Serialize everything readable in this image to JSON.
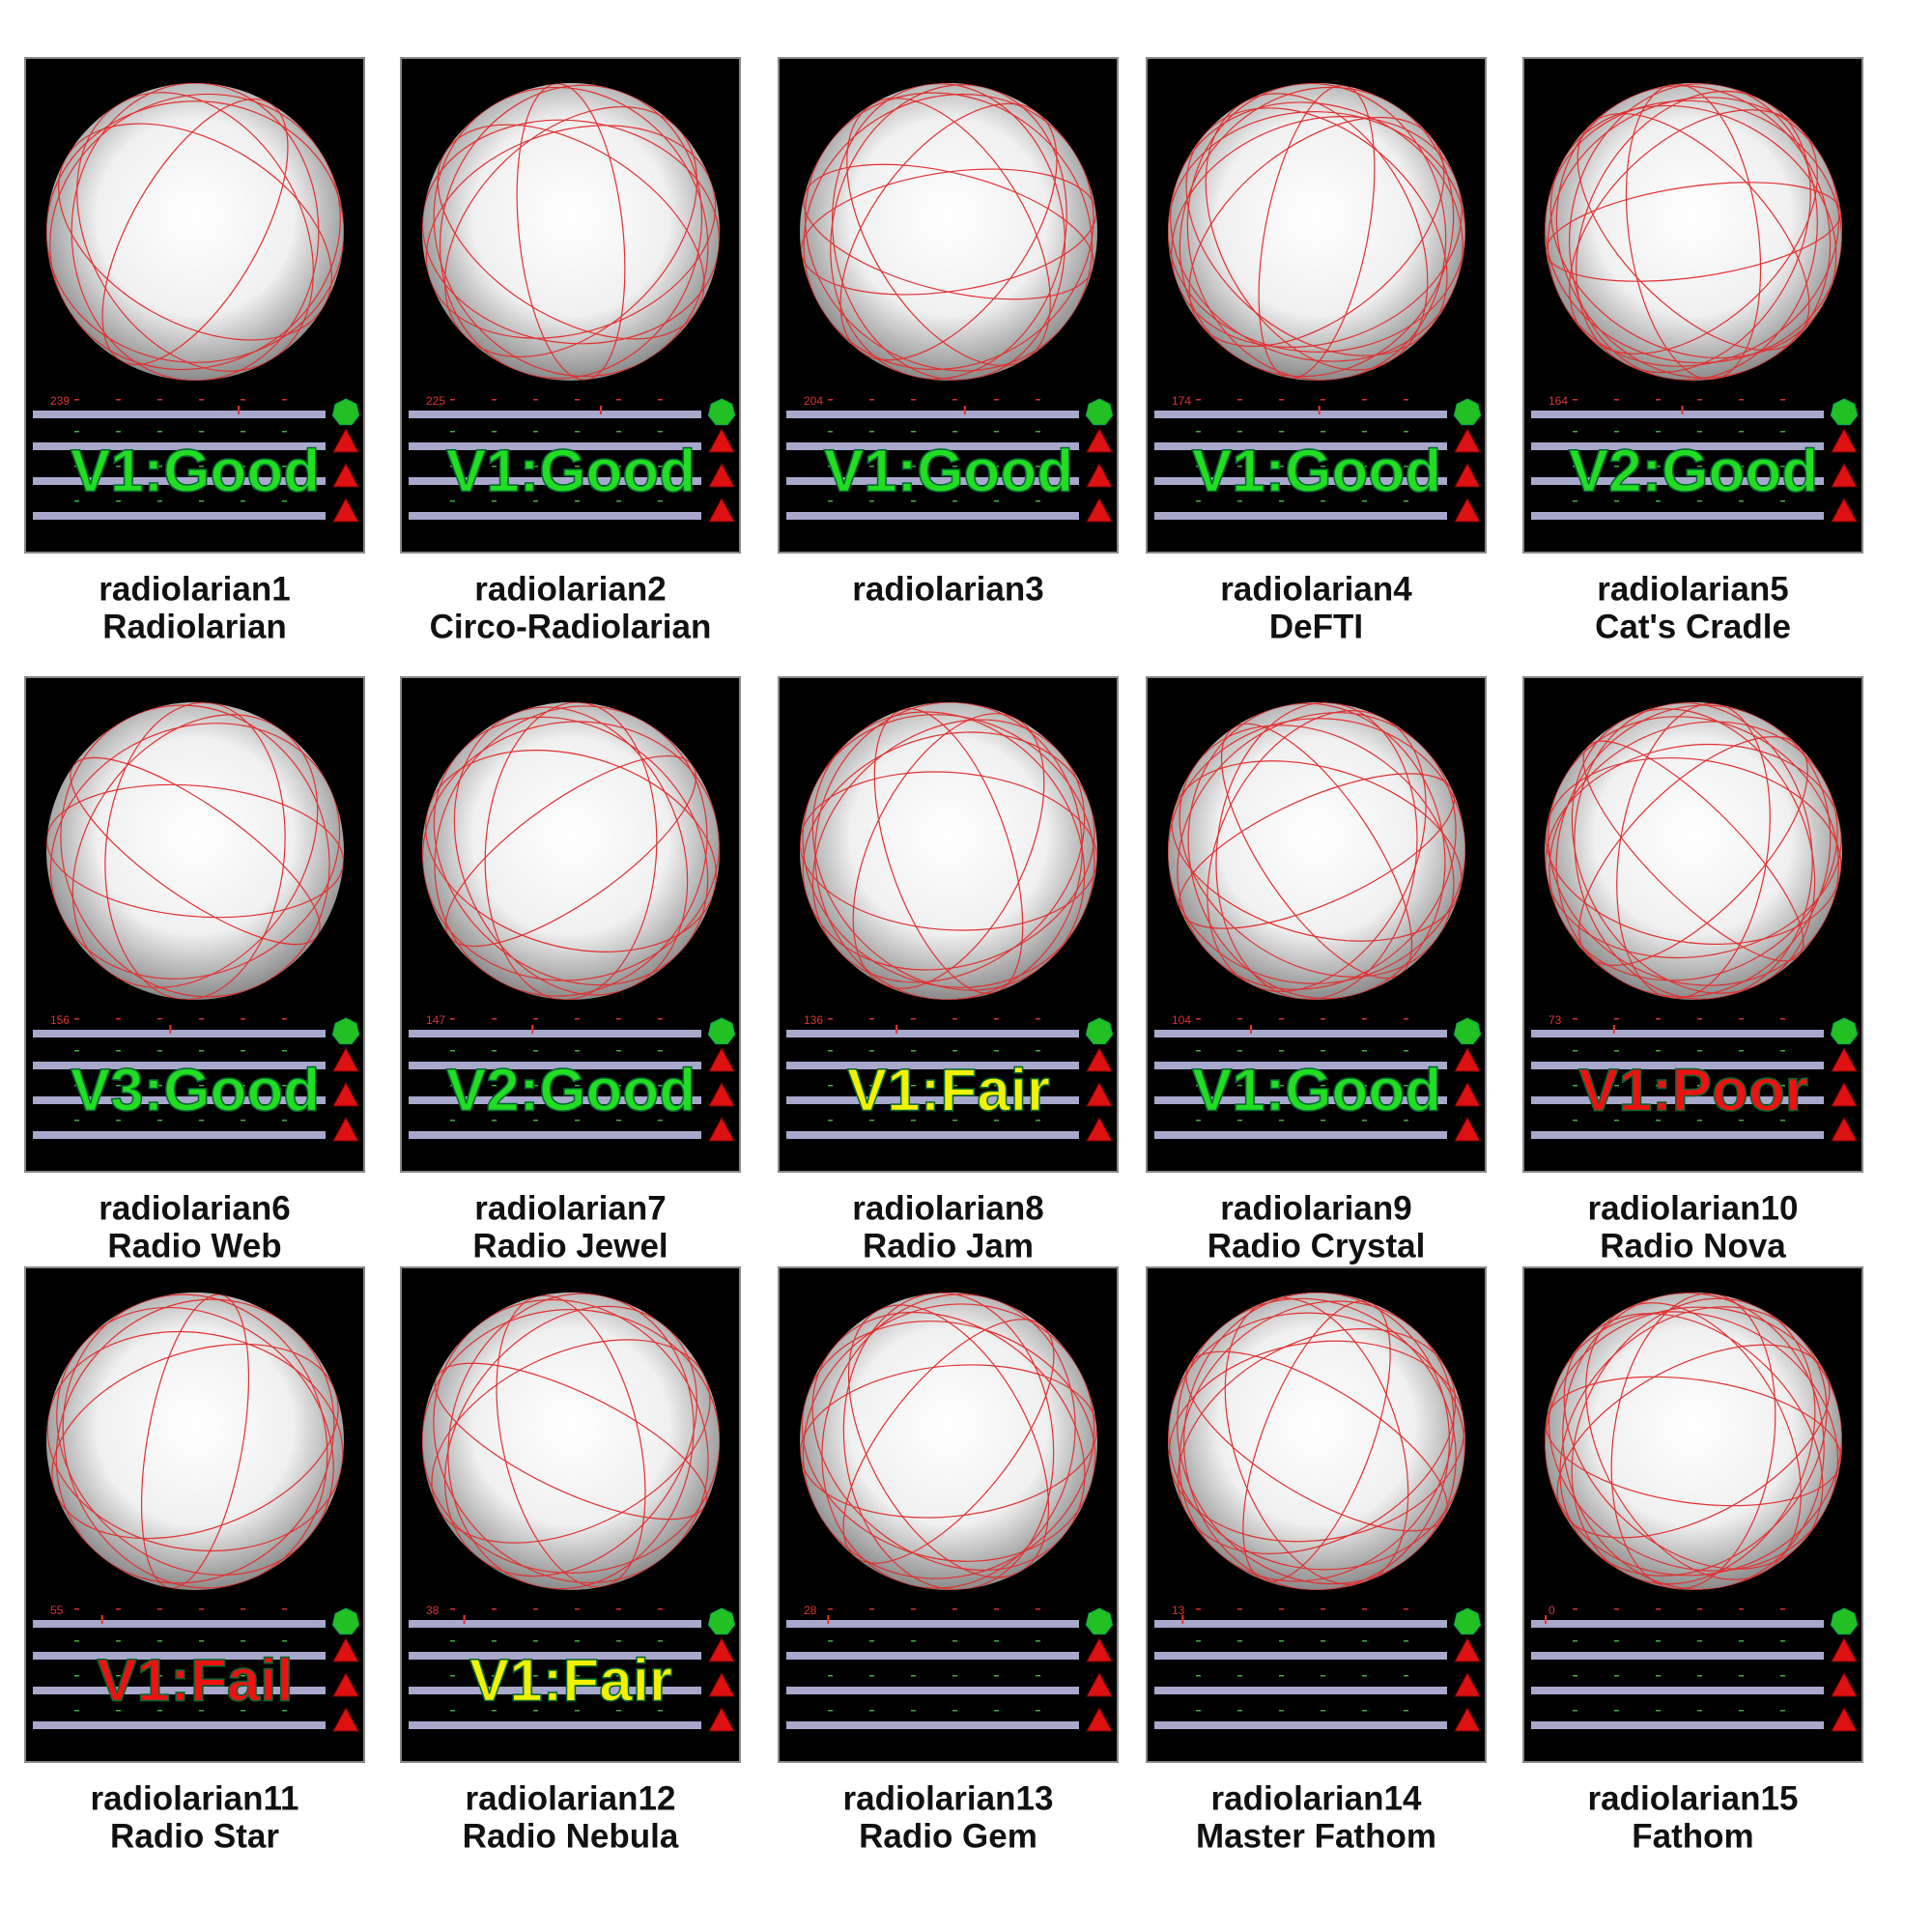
{
  "panels": [
    {
      "name": "radiolarian1",
      "title": "Radiolarian",
      "count": 239,
      "rating": "V1:Good",
      "rating_color": "#22dd22"
    },
    {
      "name": "radiolarian2",
      "title": "Circo-Radiolarian",
      "count": 225,
      "rating": "V1:Good",
      "rating_color": "#22dd22"
    },
    {
      "name": "radiolarian3",
      "count": 204,
      "rating": "V1:Good",
      "rating_color": "#22dd22"
    },
    {
      "name": "radiolarian4",
      "title": "DeFTI",
      "count": 174,
      "rating": "V1:Good",
      "rating_color": "#22dd22"
    },
    {
      "name": "radiolarian5",
      "title": "Cat's Cradle",
      "count": 164,
      "rating": "V2:Good",
      "rating_color": "#22dd22"
    },
    {
      "name": "radiolarian6",
      "title": "Radio Web",
      "count": 156,
      "rating": "V3:Good",
      "rating_color": "#22dd22"
    },
    {
      "name": "radiolarian7",
      "title": "Radio Jewel",
      "count": 147,
      "rating": "V2:Good",
      "rating_color": "#22dd22"
    },
    {
      "name": "radiolarian8",
      "title": "Radio Jam",
      "count": 136,
      "rating": "V1:Fair",
      "rating_color": "#f2f200"
    },
    {
      "name": "radiolarian9",
      "title": "Radio Crystal",
      "count": 104,
      "rating": "V1:Good",
      "rating_color": "#22dd22"
    },
    {
      "name": "radiolarian10",
      "title": "Radio Nova",
      "count": 73,
      "rating": "V1:Poor",
      "rating_color": "#ee1111"
    },
    {
      "name": "radiolarian11",
      "title": "Radio Star",
      "count": 55,
      "rating": "V1:Fail",
      "rating_color": "#ee1111"
    },
    {
      "name": "radiolarian12",
      "title": "Radio Nebula",
      "count": 38,
      "rating": "V1:Fair",
      "rating_color": "#f2f200"
    },
    {
      "name": "radiolarian13",
      "title": "Radio Gem",
      "count": 28
    },
    {
      "name": "radiolarian14",
      "title": "Master Fathom",
      "count": 13
    },
    {
      "name": "radiolarian15",
      "title": "Fathom",
      "count": 0
    }
  ]
}
